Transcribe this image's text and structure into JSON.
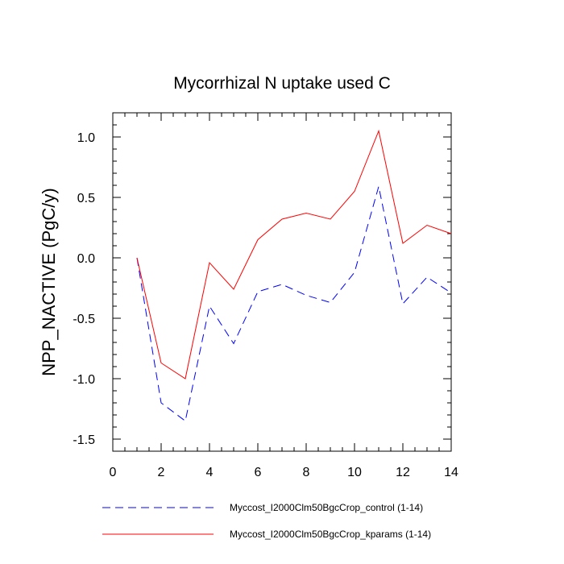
{
  "chart_data": {
    "type": "line",
    "title": "Mycorrhizal N uptake used C",
    "xlabel": "",
    "ylabel": "NPP_NACTIVE  (PgC/y)",
    "xlim": [
      0,
      14
    ],
    "ylim": [
      -1.6,
      1.2
    ],
    "x_ticks": [
      0,
      2,
      4,
      6,
      8,
      10,
      12,
      14
    ],
    "x_tick_labels": [
      "0",
      "2",
      "4",
      "6",
      "8",
      "10",
      "12",
      "14"
    ],
    "y_ticks": [
      -1.5,
      -1.0,
      -0.5,
      0.0,
      0.5,
      1.0
    ],
    "y_tick_labels": [
      "-1.5",
      "-1.0",
      "-0.5",
      "0.0",
      "0.5",
      "1.0"
    ],
    "x": [
      1,
      2,
      3,
      4,
      5,
      6,
      7,
      8,
      9,
      10,
      11,
      12,
      13,
      14
    ],
    "series": [
      {
        "name": "Myccost_I2000Clm50BgcCrop_control (1-14)",
        "color": "#0000ff",
        "style": "dashed",
        "values": [
          0.0,
          -1.2,
          -1.35,
          -0.4,
          -0.71,
          -0.28,
          -0.22,
          -0.31,
          -0.37,
          -0.12,
          0.59,
          -0.38,
          -0.16,
          -0.29
        ]
      },
      {
        "name": "Myccost_I2000Clm50BgcCrop_kparams (1-14)",
        "color": "#ff0000",
        "style": "solid",
        "values": [
          0.0,
          -0.87,
          -1.0,
          -0.04,
          -0.26,
          0.15,
          0.32,
          0.37,
          0.32,
          0.55,
          1.05,
          0.12,
          0.27,
          0.2
        ]
      }
    ]
  }
}
